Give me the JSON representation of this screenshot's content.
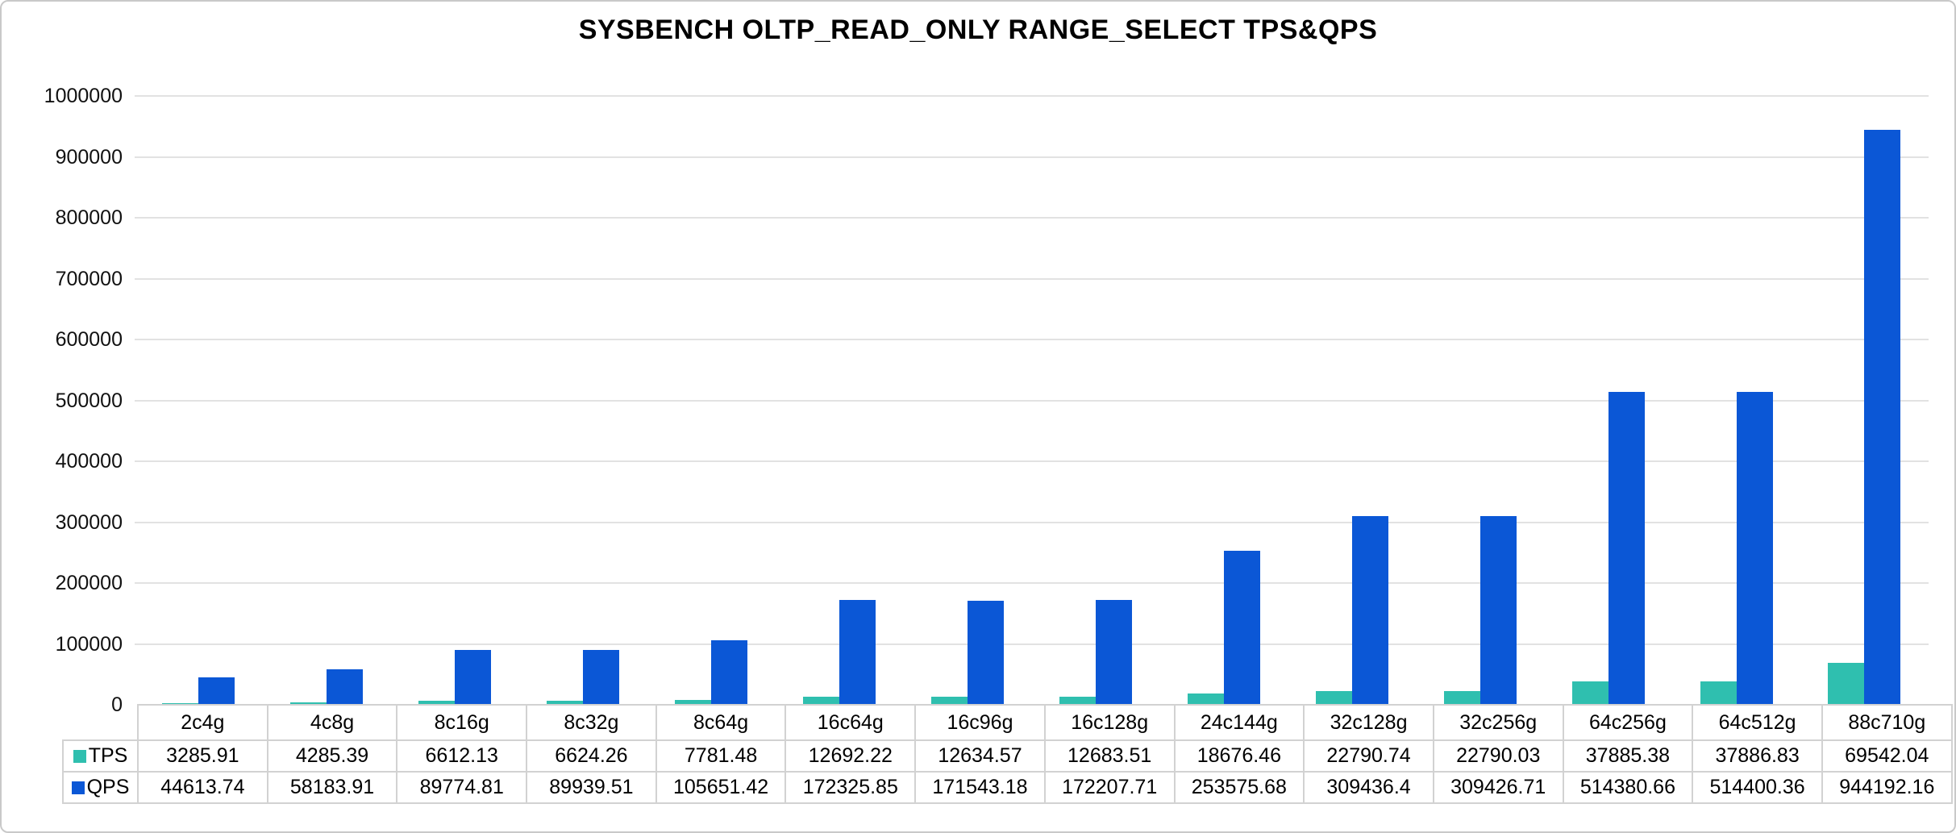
{
  "chart_data": {
    "type": "bar",
    "title": "SYSBENCH OLTP_READ_ONLY RANGE_SELECT TPS&QPS",
    "categories": [
      "2c4g",
      "4c8g",
      "8c16g",
      "8c32g",
      "8c64g",
      "16c64g",
      "16c96g",
      "16c128g",
      "24c144g",
      "32c128g",
      "32c256g",
      "64c256g",
      "64c512g",
      "88c710g"
    ],
    "series": [
      {
        "name": "TPS",
        "color": "#2FBFAF",
        "values": [
          3285.91,
          4285.39,
          6612.13,
          6624.26,
          7781.48,
          12692.22,
          12634.57,
          12683.51,
          18676.46,
          22790.74,
          22790.03,
          37885.38,
          37886.83,
          69542.04
        ]
      },
      {
        "name": "QPS",
        "color": "#0B57D6",
        "values": [
          44613.74,
          58183.91,
          89774.81,
          89939.51,
          105651.42,
          172325.85,
          171543.18,
          172207.71,
          253575.68,
          309436.4,
          309426.71,
          514380.66,
          514400.36,
          944192.16
        ]
      }
    ],
    "xlabel": "",
    "ylabel": "",
    "ylim": [
      0,
      1000000
    ],
    "y_ticks": [
      0,
      100000,
      200000,
      300000,
      400000,
      500000,
      600000,
      700000,
      800000,
      900000,
      1000000
    ],
    "grid": "horizontal",
    "legend_position": "table-left",
    "colors": {
      "gridline": "#e2e2e2",
      "table_border": "#d2d2d2",
      "text": "#111111",
      "title": "#000000"
    }
  }
}
